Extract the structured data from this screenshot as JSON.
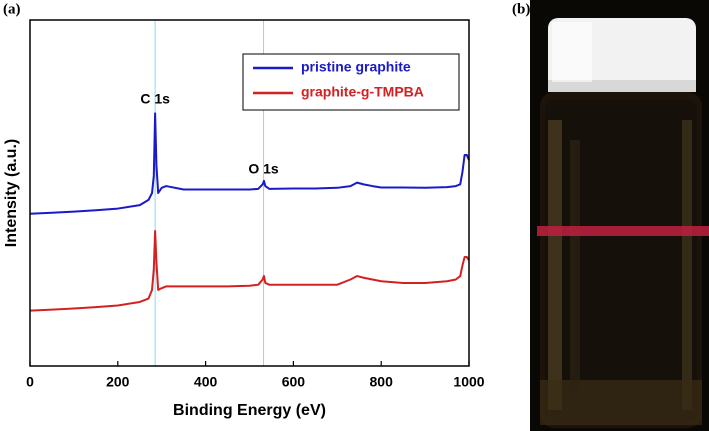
{
  "panel_labels": [
    "(a)",
    "(b)"
  ],
  "chart_data": {
    "type": "line",
    "xlabel": "Binding Energy (eV)",
    "ylabel": "Intensity (a.u.)",
    "xlim": [
      0,
      1000
    ],
    "xticks": [
      0,
      200,
      400,
      600,
      800,
      1000
    ],
    "ylim": [
      0,
      100
    ],
    "legend": "upper right",
    "annotations": [
      {
        "text": "C 1s",
        "x": 285,
        "color": "#7fdfee"
      },
      {
        "text": "O 1s",
        "x": 532,
        "color": "#7fdfee"
      }
    ],
    "x": [
      0,
      50,
      100,
      150,
      200,
      250,
      270,
      278,
      282,
      285,
      288,
      292,
      300,
      310,
      350,
      400,
      450,
      500,
      520,
      530,
      533,
      536,
      545,
      600,
      650,
      700,
      730,
      745,
      760,
      780,
      800,
      850,
      900,
      950,
      970,
      980,
      985,
      990,
      995,
      1000
    ],
    "series": [
      {
        "name": "pristine graphite",
        "color": "#1a1ac8",
        "values": [
          44,
          44.3,
          44.6,
          45,
          45.5,
          46.5,
          48,
          50,
          55,
          73,
          58,
          50,
          51.5,
          52,
          51,
          51,
          51,
          51,
          51.2,
          52.5,
          53.5,
          52,
          51.2,
          51.3,
          51.3,
          51.5,
          52,
          53,
          52.5,
          52,
          51.6,
          51.6,
          51.5,
          51.7,
          52,
          52.5,
          56,
          61,
          61,
          59.5
        ]
      },
      {
        "name": "graphite-g-TMPBA",
        "color": "#d42020",
        "values": [
          16,
          16.3,
          16.6,
          17,
          17.5,
          18.5,
          19.5,
          22,
          28,
          39,
          30,
          22,
          22.5,
          23,
          23,
          23,
          23,
          23.2,
          23.5,
          25,
          26,
          24,
          23.5,
          23.5,
          23.5,
          23.5,
          25,
          26,
          25.5,
          25,
          24.5,
          24,
          24,
          24.5,
          25,
          26,
          29,
          31.5,
          31.5,
          30.6
        ]
      }
    ]
  }
}
